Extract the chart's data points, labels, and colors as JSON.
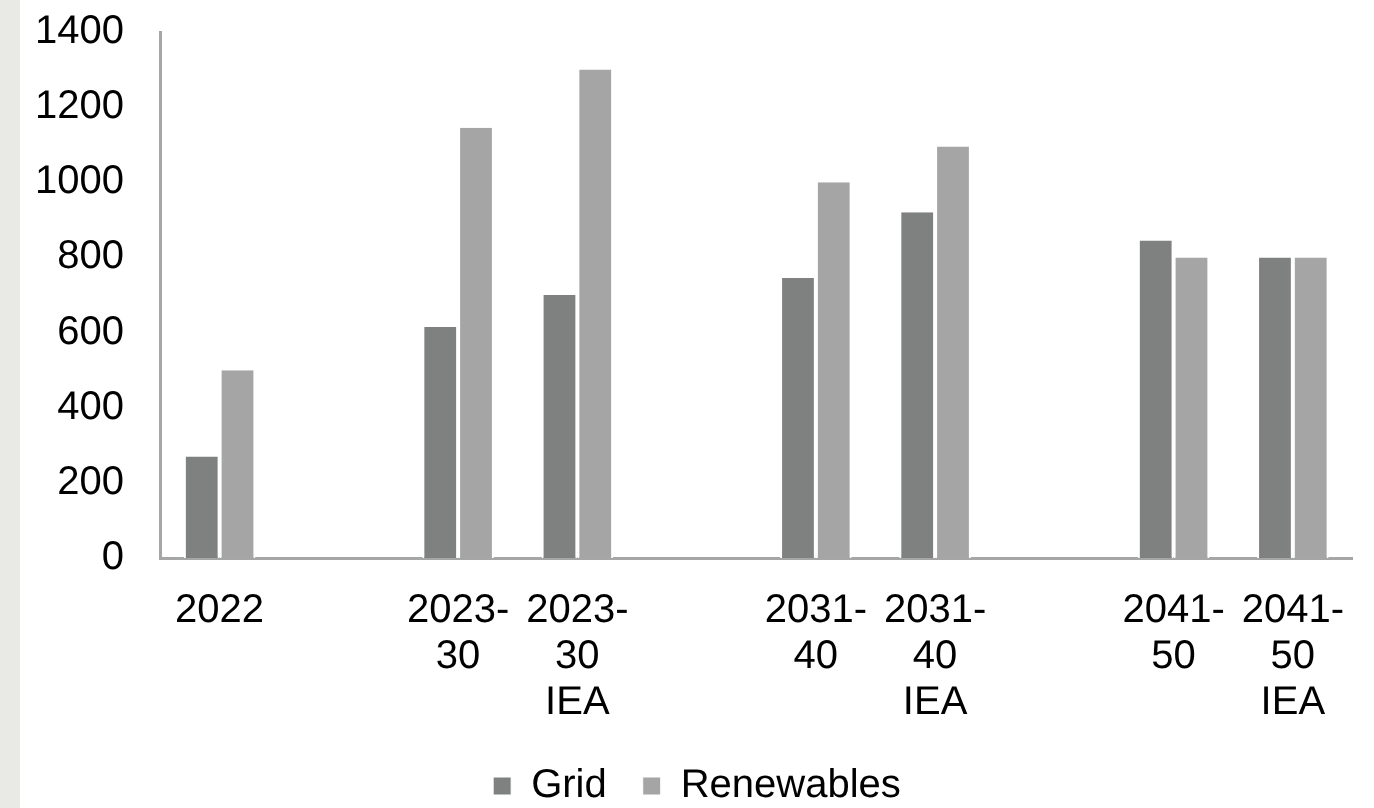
{
  "chart_data": {
    "type": "bar",
    "categories": [
      "2022",
      null,
      "2023-30",
      "2023-30 IEA",
      null,
      "2031-40",
      "2031-40 IEA",
      null,
      "2041-50",
      "2041-50 IEA"
    ],
    "series": [
      {
        "name": "Grid",
        "color": "#7f8180",
        "values": [
          270,
          null,
          615,
          700,
          null,
          745,
          920,
          null,
          845,
          800
        ]
      },
      {
        "name": "Renewables",
        "color": "#a5a5a5",
        "values": [
          500,
          null,
          1145,
          1300,
          null,
          1000,
          1095,
          null,
          800,
          800
        ]
      }
    ],
    "ylim": [
      0,
      1400
    ],
    "yticks": [
      0,
      200,
      400,
      600,
      800,
      1000,
      1200,
      1400
    ],
    "legend": "bottom"
  }
}
